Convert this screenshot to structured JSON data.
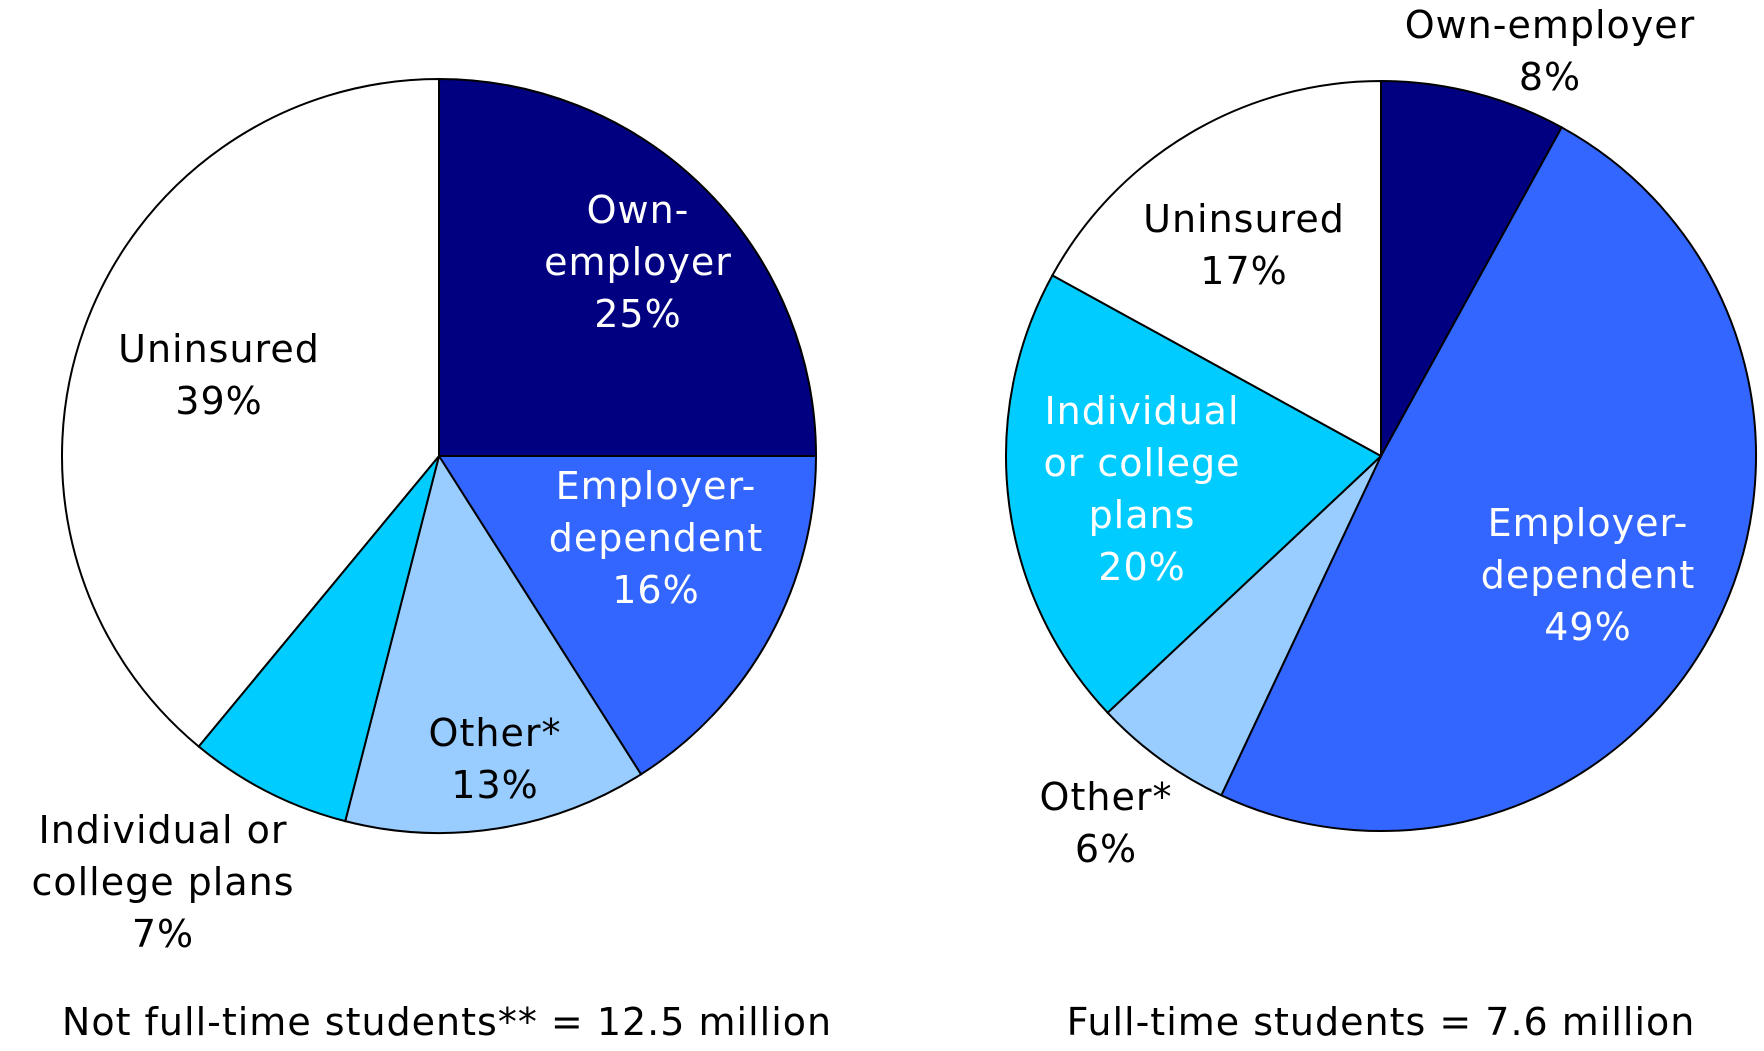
{
  "chart_data": [
    {
      "type": "pie",
      "title": "Not full-time students** = 12.5 million",
      "categories": [
        "Own-\nemployer",
        "Employer-\ndependent",
        "Other*",
        "Individual or\ncollege plans",
        "Uninsured"
      ],
      "values": [
        25,
        16,
        13,
        7,
        39
      ],
      "value_labels": [
        "25%",
        "16%",
        "13%",
        "7%",
        "39%"
      ],
      "colors": [
        "#000080",
        "#3366ff",
        "#99ccff",
        "#00ccff",
        "#ffffff"
      ]
    },
    {
      "type": "pie",
      "title": "Full-time students = 7.6 million",
      "categories": [
        "Own-employer",
        "Employer-\ndependent",
        "Other*",
        "Individual\nor college\nplans",
        "Uninsured"
      ],
      "values": [
        8,
        49,
        6,
        20,
        17
      ],
      "value_labels": [
        "8%",
        "49%",
        "6%",
        "20%",
        "17%"
      ],
      "colors": [
        "#000080",
        "#3366ff",
        "#99ccff",
        "#00ccff",
        "#ffffff"
      ]
    }
  ]
}
